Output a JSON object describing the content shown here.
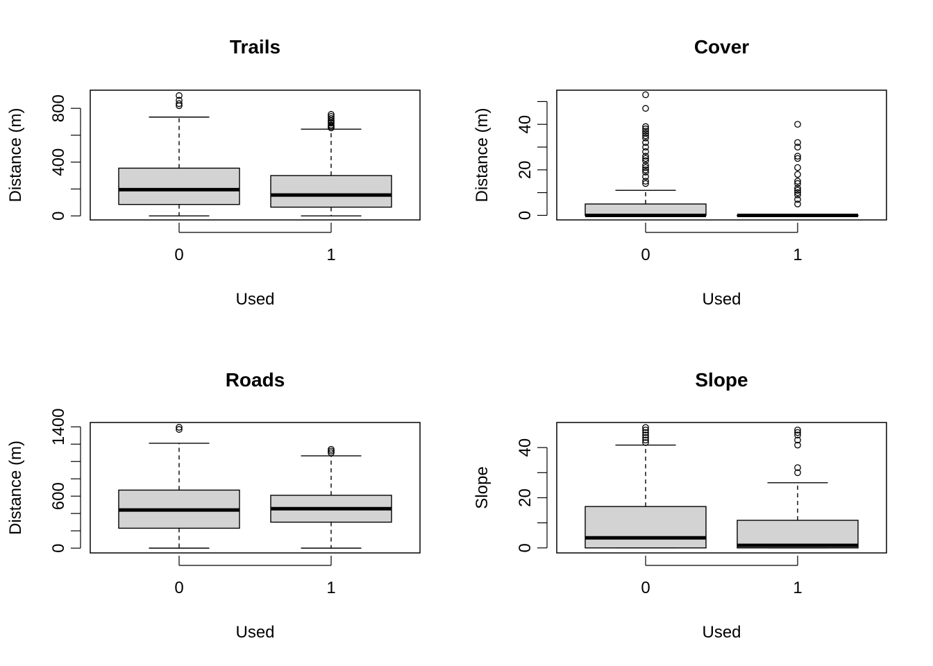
{
  "chart_data": [
    {
      "type": "box",
      "title": "Trails",
      "xlabel": "Used",
      "ylabel": "Distance (m)",
      "categories": [
        "0",
        "1"
      ],
      "yticks": [
        "0",
        "400",
        "800"
      ],
      "tick_values": [
        0,
        200,
        400,
        600,
        800
      ],
      "ylim": [
        -30,
        935
      ],
      "boxes": [
        {
          "min": 0,
          "q1": 85,
          "median": 195,
          "q3": 355,
          "max": 735,
          "outliers": [
            820,
            835,
            860,
            895
          ]
        },
        {
          "min": 0,
          "q1": 65,
          "median": 155,
          "q3": 300,
          "max": 645,
          "outliers": [
            655,
            665,
            675,
            690,
            700,
            710,
            725,
            740,
            755
          ]
        }
      ]
    },
    {
      "type": "box",
      "title": "Cover",
      "xlabel": "Used",
      "ylabel": "Distance (m)",
      "categories": [
        "0",
        "1"
      ],
      "yticks": [
        "0",
        "20",
        "40"
      ],
      "tick_values": [
        0,
        10,
        20,
        30,
        40,
        50
      ],
      "ylim": [
        -2,
        55
      ],
      "boxes": [
        {
          "min": 0,
          "q1": 0,
          "median": 0,
          "q3": 5,
          "max": 11,
          "outliers": [
            14,
            15,
            17,
            19,
            20,
            21,
            22,
            24,
            25,
            26,
            28,
            30,
            32,
            34,
            35,
            36,
            37,
            38,
            39,
            47,
            53
          ]
        },
        {
          "min": 0,
          "q1": 0,
          "median": 0,
          "q3": 0,
          "max": 0,
          "outliers": [
            5,
            7,
            9,
            10,
            11,
            12,
            14,
            15,
            18,
            21,
            25,
            26,
            30,
            32,
            40
          ]
        }
      ]
    },
    {
      "type": "box",
      "title": "Roads",
      "xlabel": "Used",
      "ylabel": "Distance (m)",
      "categories": [
        "0",
        "1"
      ],
      "yticks": [
        "0",
        "600",
        "1400"
      ],
      "tick_values": [
        0,
        200,
        400,
        600,
        800,
        1000,
        1200,
        1400
      ],
      "ylim": [
        -55,
        1450
      ],
      "boxes": [
        {
          "min": 0,
          "q1": 230,
          "median": 440,
          "q3": 670,
          "max": 1210,
          "outliers": [
            1370,
            1395
          ]
        },
        {
          "min": 0,
          "q1": 300,
          "median": 455,
          "q3": 610,
          "max": 1065,
          "outliers": [
            1100,
            1120,
            1140
          ]
        }
      ]
    },
    {
      "type": "box",
      "title": "Slope",
      "xlabel": "Used",
      "ylabel": "Slope",
      "categories": [
        "0",
        "1"
      ],
      "yticks": [
        "0",
        "20",
        "40"
      ],
      "tick_values": [
        0,
        10,
        20,
        30,
        40
      ],
      "ylim": [
        -2,
        50
      ],
      "boxes": [
        {
          "min": 0,
          "q1": 0,
          "median": 4,
          "q3": 16.5,
          "max": 41,
          "outliers": [
            42,
            43,
            44,
            45,
            46,
            47,
            48
          ]
        },
        {
          "min": 0,
          "q1": 0,
          "median": 1,
          "q3": 11,
          "max": 26,
          "outliers": [
            30,
            32,
            41,
            43,
            45,
            46,
            47
          ]
        }
      ]
    }
  ]
}
